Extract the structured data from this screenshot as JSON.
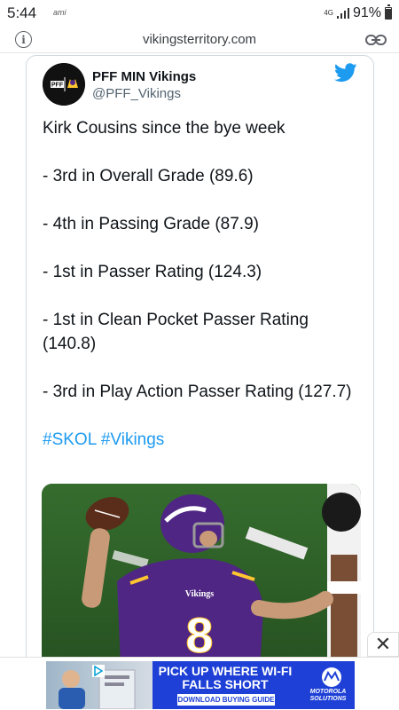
{
  "status_bar": {
    "time": "5:44",
    "carrier": "ami",
    "network": "4G",
    "battery": "91%",
    "battery_level": 0.91
  },
  "browser": {
    "url": "vikingsterritory.com"
  },
  "tweet": {
    "author_name": "PFF MIN Vikings",
    "author_handle": "@PFF_Vikings",
    "lines": {
      "intro": "Kirk Cousins since the bye week",
      "stat1": "- 3rd in Overall Grade (89.6)",
      "stat2": "- 4th in Passing Grade (87.9)",
      "stat3": "- 1st in Passer Rating (124.3)",
      "stat4": "- 1st in Clean Pocket Passer Rating (140.8)",
      "stat5": "- 3rd in Play Action Passer Rating (127.7)",
      "hashtags": "#SKOL #Vikings"
    },
    "image_jersey_number": "8",
    "image_jersey_text": "Vikings"
  },
  "ad": {
    "headline": "PICK UP WHERE WI-FI FALLS SHORT",
    "cta": "DOWNLOAD BUYING GUIDE",
    "brand": "MOTOROLA SOLUTIONS",
    "close_symbol": "✕"
  },
  "colors": {
    "twitter_blue": "#1d9bf0",
    "vikings_purple": "#4f2683",
    "vikings_gold": "#ffc62f",
    "ad_blue": "#1e40d6"
  }
}
